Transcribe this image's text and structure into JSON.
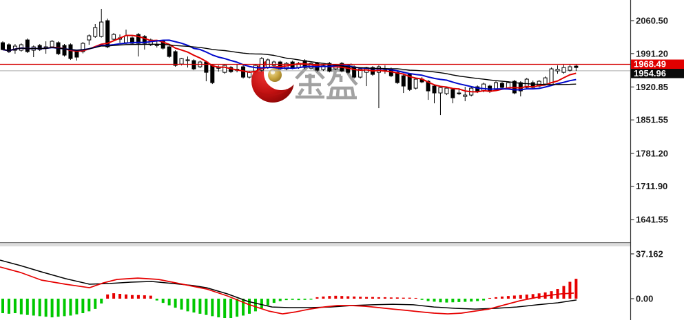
{
  "watermark": {
    "brand_characters": "金 盛",
    "logo": "jinsheng-crescent-logo",
    "char_color": "#a2a2a2",
    "logo_red": "#c01010",
    "logo_dark_red": "#7d0404",
    "logo_gold": "#c9a63f"
  },
  "price_axis": {
    "tick_labels": [
      "2060.50",
      "1991.20",
      "1920.85",
      "1851.55",
      "1781.20",
      "1711.90",
      "1641.55"
    ],
    "current_price_label": "1968.49",
    "last_close_label": "1954.96",
    "current_tag_bg": "#e00000",
    "last_close_tag_bg": "#0a0a0a",
    "label_color": "#1a1a1a"
  },
  "indicator_axis": {
    "tick_labels": [
      "37.162",
      "0.00"
    ]
  },
  "chart_data": {
    "type": "candlestick",
    "title": "",
    "panels": [
      {
        "name": "price-panel",
        "x_start": 4,
        "x_step": 8.95,
        "ylim": [
          1594,
          2104
        ],
        "ticks": [
          {
            "label": "2060.50",
            "value": 2060.5
          },
          {
            "label": "1991.20",
            "value": 1991.2
          },
          {
            "label": "1920.85",
            "value": 1920.85
          },
          {
            "label": "1851.55",
            "value": 1851.55
          },
          {
            "label": "1781.20",
            "value": 1781.2
          },
          {
            "label": "1711.90",
            "value": 1711.9
          },
          {
            "label": "1641.55",
            "value": 1641.55
          }
        ],
        "current_price": {
          "label": "1968.49",
          "value": 1968.49,
          "line_color": "#d40000"
        },
        "last_close": {
          "label": "1954.96",
          "value": 1954.96,
          "line_color": "#ababab"
        },
        "candles": [
          [
            2014.1,
            2017.0,
            1998.2,
            1999.6
          ],
          [
            2009.8,
            2012.7,
            1992.4,
            1995.3
          ],
          [
            1998.2,
            2011.2,
            1990.9,
            2006.9
          ],
          [
            1998.2,
            2012.7,
            1995.3,
            2009.8
          ],
          [
            2019.9,
            2023.1,
            1992.4,
            1995.3
          ],
          [
            1998.2,
            2008.3,
            1983.7,
            2005.4
          ],
          [
            2008.3,
            2011.2,
            1996.7,
            1999.6
          ],
          [
            2004.0,
            2017.0,
            1990.9,
            2005.4
          ],
          [
            2005.4,
            2019.9,
            2002.5,
            2017.0
          ],
          [
            2014.1,
            2017.0,
            1988.0,
            1990.9
          ],
          [
            2008.3,
            2011.2,
            1985.1,
            1988.0
          ],
          [
            2009.8,
            2012.7,
            1977.9,
            1980.8
          ],
          [
            1995.3,
            1998.2,
            1976.4,
            1983.7
          ],
          [
            1995.3,
            2015.6,
            1991.6,
            2012.7
          ],
          [
            2019.9,
            2031.5,
            2009.8,
            2028.6
          ],
          [
            2027.2,
            2053.3,
            2024.3,
            2046.0
          ],
          [
            2027.2,
            2085.2,
            2025.0,
            2057.6
          ],
          [
            2060.5,
            2064.9,
            2002.5,
            2005.4
          ],
          [
            2021.4,
            2034.4,
            2017.0,
            2031.5
          ],
          [
            2021.4,
            2031.5,
            2014.1,
            2024.3
          ],
          [
            2014.1,
            2041.7,
            2011.2,
            2028.6
          ],
          [
            2024.3,
            2027.2,
            2009.8,
            2012.7
          ],
          [
            2031.5,
            2034.4,
            1985.1,
            2012.7
          ],
          [
            2027.2,
            2030.1,
            1999.6,
            2012.7
          ],
          [
            2009.8,
            2022.8,
            2006.9,
            2019.9
          ],
          [
            2008.3,
            2019.9,
            2003.9,
            2009.8
          ],
          [
            2017.0,
            2019.9,
            1999.6,
            2002.5
          ],
          [
            2005.4,
            2008.3,
            1982.2,
            1985.1
          ],
          [
            1995.3,
            1998.2,
            1963.4,
            1966.3
          ],
          [
            1969.1,
            1982.2,
            1966.3,
            1980.8
          ],
          [
            1976.4,
            1985.1,
            1961.9,
            1978.0
          ],
          [
            1976.4,
            1979.3,
            1956.1,
            1959.0
          ],
          [
            1963.4,
            1976.4,
            1960.5,
            1973.5
          ],
          [
            1973.5,
            1976.4,
            1932.9,
            1951.7
          ],
          [
            1966.3,
            1969.1,
            1927.1,
            1930.0
          ],
          [
            1960.5,
            1966.3,
            1953.2,
            1961.9
          ],
          [
            1951.7,
            1969.1,
            1948.8,
            1966.3
          ],
          [
            1961.9,
            1964.8,
            1950.3,
            1953.2
          ],
          [
            1956.1,
            1969.1,
            1951.7,
            1958.3
          ],
          [
            1963.4,
            1966.3,
            1938.7,
            1941.6
          ],
          [
            1941.6,
            1954.6,
            1938.7,
            1951.7
          ],
          [
            1954.6,
            1969.1,
            1951.7,
            1966.3
          ],
          [
            1956.1,
            1983.7,
            1953.2,
            1980.8
          ],
          [
            1961.9,
            1980.8,
            1959.0,
            1977.9
          ],
          [
            1966.3,
            1976.4,
            1963.4,
            1973.5
          ],
          [
            1973.5,
            1976.4,
            1956.1,
            1959.0
          ],
          [
            1959.0,
            1973.5,
            1956.1,
            1970.6
          ],
          [
            1973.5,
            1976.4,
            1958.3,
            1960.5
          ],
          [
            1961.9,
            1973.5,
            1959.0,
            1970.6
          ],
          [
            1976.4,
            1979.3,
            1959.0,
            1961.9
          ],
          [
            1960.5,
            1973.5,
            1957.5,
            1970.6
          ],
          [
            1970.6,
            1973.5,
            1953.2,
            1956.1
          ],
          [
            1957.5,
            1969.1,
            1954.6,
            1966.3
          ],
          [
            1970.6,
            1973.5,
            1951.7,
            1954.6
          ],
          [
            1959.0,
            1969.1,
            1956.1,
            1966.3
          ],
          [
            1970.6,
            1973.5,
            1951.7,
            1954.6
          ],
          [
            1966.3,
            1969.1,
            1948.8,
            1951.7
          ],
          [
            1963.4,
            1966.3,
            1938.7,
            1941.6
          ],
          [
            1941.6,
            1961.9,
            1938.7,
            1959.0
          ],
          [
            1951.7,
            1963.4,
            1922.8,
            1961.9
          ],
          [
            1961.9,
            1964.8,
            1944.5,
            1947.4
          ],
          [
            1951.7,
            1966.3,
            1876.4,
            1963.4
          ],
          [
            1954.6,
            1966.3,
            1948.8,
            1956.1
          ],
          [
            1959.0,
            1961.9,
            1941.6,
            1944.5
          ],
          [
            1951.7,
            1954.6,
            1927.1,
            1930.0
          ],
          [
            1944.5,
            1947.4,
            1908.3,
            1922.8
          ],
          [
            1947.4,
            1950.3,
            1912.6,
            1915.5
          ],
          [
            1918.4,
            1940.1,
            1915.5,
            1937.3
          ],
          [
            1937.3,
            1941.6,
            1928.6,
            1931.5
          ],
          [
            1932.9,
            1935.8,
            1893.8,
            1912.6
          ],
          [
            1922.8,
            1925.7,
            1886.5,
            1908.3
          ],
          [
            1908.3,
            1922.8,
            1861.9,
            1919.9
          ],
          [
            1906.8,
            1921.3,
            1903.9,
            1918.4
          ],
          [
            1915.5,
            1918.4,
            1886.5,
            1898.1
          ],
          [
            1908.3,
            1918.4,
            1903.9,
            1906.8
          ],
          [
            1901.0,
            1921.3,
            1890.9,
            1903.9
          ],
          [
            1903.9,
            1921.3,
            1901.0,
            1918.4
          ],
          [
            1921.3,
            1924.2,
            1908.3,
            1911.2
          ],
          [
            1912.6,
            1930.0,
            1909.7,
            1927.1
          ],
          [
            1922.8,
            1925.7,
            1908.3,
            1911.2
          ],
          [
            1915.5,
            1932.9,
            1912.6,
            1930.0
          ],
          [
            1928.6,
            1931.5,
            1917.0,
            1920.0
          ],
          [
            1918.4,
            1932.9,
            1915.5,
            1930.0
          ],
          [
            1932.9,
            1935.8,
            1905.4,
            1908.3
          ],
          [
            1930.0,
            1932.9,
            1901.0,
            1912.6
          ],
          [
            1919.9,
            1940.1,
            1917.0,
            1937.3
          ],
          [
            1930.0,
            1934.4,
            1917.0,
            1919.9
          ],
          [
            1922.8,
            1935.8,
            1919.9,
            1932.9
          ],
          [
            1927.1,
            1943.0,
            1924.2,
            1940.1
          ],
          [
            1925.7,
            1961.9,
            1922.8,
            1959.0
          ],
          [
            1954.6,
            1966.3,
            1948.8,
            1958.3
          ],
          [
            1951.7,
            1967.7,
            1948.8,
            1961.9
          ],
          [
            1956.1,
            1967.7,
            1953.2,
            1963.4
          ],
          [
            1964.8,
            1968.5,
            1954.6,
            1961.9
          ]
        ],
        "up_color": "#ffffff",
        "down_color": "#000000",
        "overlays": [
          {
            "name": "ma-fast",
            "period": 8,
            "color": "#e00000",
            "width": 2
          },
          {
            "name": "ma-mid",
            "period": 15,
            "color": "#0008cc",
            "width": 2
          },
          {
            "name": "ma-slow",
            "period": 30,
            "color": "#000000",
            "width": 1.4
          }
        ]
      },
      {
        "name": "oscillator-panel",
        "ylim": [
          -17.7,
          43.4
        ],
        "ticks": [
          {
            "label": "37.162",
            "value": 37.162
          },
          {
            "label": "0.00",
            "value": 0
          }
        ],
        "histogram": {
          "up_color": "#e60000",
          "down_color": "#00c800",
          "values": [
            -12,
            -12.5,
            -12,
            -13,
            -13.5,
            -14,
            -14.5,
            -15,
            -15.5,
            -15,
            -14.5,
            -14,
            -13,
            -12,
            -10.5,
            -8.5,
            -4,
            3.5,
            4.5,
            4,
            3.5,
            3,
            3,
            2.8,
            2.5,
            -1.5,
            -3.5,
            -5.5,
            -7.5,
            -9,
            -10.5,
            -11.5,
            -12.5,
            -13.5,
            -14.5,
            -15.5,
            -16,
            -16,
            -15,
            -14,
            -12.5,
            -10.5,
            -8,
            -5.5,
            -3.5,
            -2,
            -1.2,
            -1,
            -1.2,
            -1,
            -0.8,
            1.2,
            1.8,
            2.2,
            2.4,
            2.2,
            2,
            1.8,
            1.6,
            1.4,
            1.4,
            1.2,
            1.2,
            1,
            1,
            0.8,
            0.8,
            0.6,
            -1,
            -2,
            -2.5,
            -3,
            -3.2,
            -3,
            -2.8,
            -2.6,
            -2.4,
            -2,
            -1.5,
            0.6,
            1.2,
            1.8,
            2.2,
            2.6,
            3,
            3.4,
            3.8,
            4.4,
            5.2,
            6.2,
            8,
            10.5,
            14,
            16.5
          ]
        },
        "lines": [
          {
            "name": "osma-slow-black",
            "color": "#000000",
            "width": 1.5,
            "points": [
              [
                0,
                32.0
              ],
              [
                30,
                27.4
              ],
              [
                60,
                22.3
              ],
              [
                95,
                16.6
              ],
              [
                130,
                12.0
              ],
              [
                160,
                12.6
              ],
              [
                190,
                13.7
              ],
              [
                220,
                14.3
              ],
              [
                250,
                12.6
              ],
              [
                280,
                10.9
              ],
              [
                300,
                9.1
              ],
              [
                330,
                4.0
              ],
              [
                360,
                -2.3
              ],
              [
                395,
                -6.9
              ],
              [
                420,
                -7.4
              ],
              [
                450,
                -7.4
              ],
              [
                480,
                -6.9
              ],
              [
                510,
                -5.7
              ],
              [
                540,
                -5.1
              ],
              [
                570,
                -4.6
              ],
              [
                600,
                -5.1
              ],
              [
                630,
                -6.9
              ],
              [
                660,
                -8.0
              ],
              [
                690,
                -8.6
              ],
              [
                720,
                -8.0
              ],
              [
                750,
                -6.9
              ],
              [
                780,
                -5.1
              ],
              [
                810,
                -3.4
              ],
              [
                837,
                -1.1
              ]
            ]
          },
          {
            "name": "osma-fast-red",
            "color": "#e60000",
            "width": 1.7,
            "points": [
              [
                0,
                26.3
              ],
              [
                30,
                21.7
              ],
              [
                60,
                15.4
              ],
              [
                95,
                12.0
              ],
              [
                130,
                9.1
              ],
              [
                150,
                13.1
              ],
              [
                170,
                16.0
              ],
              [
                200,
                17.1
              ],
              [
                230,
                16.0
              ],
              [
                250,
                13.7
              ],
              [
                270,
                11.4
              ],
              [
                300,
                8.0
              ],
              [
                330,
                2.3
              ],
              [
                360,
                -4.6
              ],
              [
                390,
                -10.3
              ],
              [
                410,
                -12.6
              ],
              [
                430,
                -10.9
              ],
              [
                450,
                -8.6
              ],
              [
                470,
                -6.9
              ],
              [
                490,
                -5.7
              ],
              [
                510,
                -5.7
              ],
              [
                530,
                -6.3
              ],
              [
                550,
                -7.4
              ],
              [
                570,
                -8.6
              ],
              [
                590,
                -9.7
              ],
              [
                610,
                -10.9
              ],
              [
                630,
                -12.0
              ],
              [
                650,
                -12.6
              ],
              [
                670,
                -12.0
              ],
              [
                690,
                -10.3
              ],
              [
                710,
                -8.6
              ],
              [
                725,
                -6.3
              ],
              [
                740,
                -4.0
              ],
              [
                755,
                -1.7
              ],
              [
                770,
                0.0
              ],
              [
                785,
                1.7
              ],
              [
                800,
                2.9
              ],
              [
                815,
                4.0
              ],
              [
                833,
                4.6
              ]
            ]
          }
        ]
      }
    ]
  }
}
